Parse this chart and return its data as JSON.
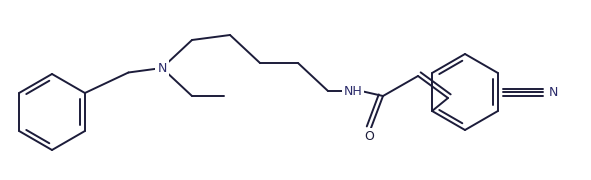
{
  "bg_color": "#ffffff",
  "line_color": "#1c1c3a",
  "n_color": "#2a2a6a",
  "o_color": "#1c1c3a",
  "lw": 1.4,
  "fig_width": 5.91,
  "fig_height": 1.8,
  "dpi": 100,
  "xlim": [
    0,
    591
  ],
  "ylim": [
    0,
    180
  ]
}
